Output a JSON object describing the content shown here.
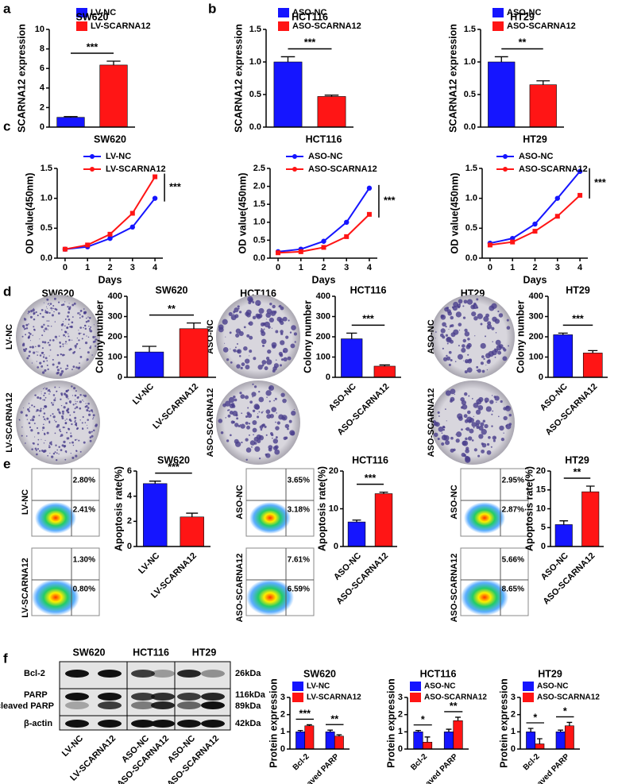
{
  "figure": {
    "panels": [
      "a",
      "b",
      "c",
      "d",
      "e",
      "f"
    ],
    "colony": [
      {
        "title": "SW620",
        "labels": [
          "LV-NC",
          "LV-SCARNA12"
        ]
      },
      {
        "title": "HCT116",
        "labels": [
          "ASO-NC",
          "ASO-SCARNA12"
        ]
      },
      {
        "title": "HT29",
        "labels": [
          "ASO-NC",
          "ASO-SCARNA12"
        ]
      }
    ],
    "flow": [
      {
        "labels": [
          "LV-NC",
          "LV-SCARNA12"
        ],
        "upper": [
          "2.80%",
          "1.30%"
        ],
        "lower": [
          "2.41%",
          "0.80%"
        ]
      },
      {
        "labels": [
          "ASO-NC",
          "ASO-SCARNA12"
        ],
        "upper": [
          "3.65%",
          "7.61%"
        ],
        "lower": [
          "3.18%",
          "6.59%"
        ]
      },
      {
        "labels": [
          "ASO-NC",
          "ASO-SCARNA12"
        ],
        "upper": [
          "2.95%",
          "5.66%"
        ],
        "lower": [
          "2.87%",
          "8.65%"
        ]
      }
    ],
    "western": {
      "cell_lines": [
        "SW620",
        "HCT116",
        "HT29"
      ],
      "proteins": [
        "Bcl-2",
        "PARP",
        "cleaved PARP",
        "β-actin"
      ],
      "sizes": [
        "26kDa",
        "116kDa",
        "89kDa",
        "42kDa"
      ],
      "lanes": [
        "LV-NC",
        "LV-SCARNA12",
        "ASO-NC",
        "ASO-SCARNA12",
        "ASO-NC",
        "ASO-SCARNA12"
      ]
    }
  },
  "chart_data": [
    {
      "type": "bar",
      "title": "SW620",
      "ylabel": "SCARNA12 expression",
      "categories": [
        "LV-NC",
        "LV-SCARNA12"
      ],
      "values": [
        1.0,
        6.35
      ],
      "errors": [
        0.08,
        0.4
      ],
      "colors": [
        "#1515ff",
        "#ff1515"
      ],
      "ylim": [
        0,
        10
      ],
      "yticks": [
        0,
        2,
        4,
        6,
        8,
        10
      ],
      "legend": "top",
      "significance": "***"
    },
    {
      "type": "bar",
      "title": "HCT116",
      "ylabel": "SCARNA12 expression",
      "categories": [
        "ASO-NC",
        "ASO-SCARNA12"
      ],
      "values": [
        1.0,
        0.47
      ],
      "errors": [
        0.08,
        0.02
      ],
      "colors": [
        "#1515ff",
        "#ff1515"
      ],
      "ylim": [
        0,
        1.5
      ],
      "yticks": [
        {
          "value": 0,
          "label": "0.0"
        },
        0.5,
        {
          "value": 1,
          "label": "1.0"
        },
        1.5
      ],
      "legend": "top",
      "significance": "***"
    },
    {
      "type": "bar",
      "title": "HT29",
      "ylabel": "SCARNA12 expression",
      "categories": [
        "ASO-NC",
        "ASO-SCARNA12"
      ],
      "values": [
        1.0,
        0.65
      ],
      "errors": [
        0.08,
        0.06
      ],
      "colors": [
        "#1515ff",
        "#ff1515"
      ],
      "ylim": [
        0,
        1.5
      ],
      "yticks": [
        {
          "value": 0,
          "label": "0.0"
        },
        0.5,
        {
          "value": 1,
          "label": "1.0"
        },
        1.5
      ],
      "legend": "top",
      "significance": "**"
    },
    {
      "type": "line",
      "title": "SW620",
      "ylabel": "OD value(450nm)",
      "xlabel": "Days",
      "x": [
        0,
        1,
        2,
        3,
        4
      ],
      "xlim": [
        -0.35,
        4.35
      ],
      "xticks": [
        0,
        1,
        2,
        3,
        4
      ],
      "ylim": [
        0,
        1.5
      ],
      "yticks": [
        {
          "value": 0,
          "label": "0.0"
        },
        0.5,
        {
          "value": 1,
          "label": "1.0"
        },
        1.5
      ],
      "series": [
        {
          "name": "LV-NC",
          "color": "#1515ff",
          "values": [
            0.15,
            0.19,
            0.33,
            0.52,
            1.0
          ]
        },
        {
          "name": "LV-SCARNA12",
          "color": "#ff1515",
          "values": [
            0.15,
            0.22,
            0.4,
            0.75,
            1.36
          ]
        }
      ],
      "significance": "***"
    },
    {
      "type": "line",
      "title": "HCT116",
      "ylabel": "OD value(450nm)",
      "xlabel": "Days",
      "x": [
        0,
        1,
        2,
        3,
        4
      ],
      "xlim": [
        -0.35,
        4.35
      ],
      "xticks": [
        0,
        1,
        2,
        3,
        4
      ],
      "ylim": [
        0,
        2.5
      ],
      "yticks": [
        {
          "value": 0,
          "label": "0.0"
        },
        0.5,
        {
          "value": 1,
          "label": "1.0"
        },
        1.5,
        {
          "value": 2,
          "label": "2.0"
        },
        2.5
      ],
      "series": [
        {
          "name": "ASO-NC",
          "color": "#1515ff",
          "values": [
            0.18,
            0.25,
            0.47,
            1.0,
            1.95
          ]
        },
        {
          "name": "ASO-SCARNA12",
          "color": "#ff1515",
          "values": [
            0.15,
            0.18,
            0.3,
            0.6,
            1.22
          ]
        }
      ],
      "significance": "***"
    },
    {
      "type": "line",
      "title": "HT29",
      "ylabel": "OD value(450nm)",
      "xlabel": "Days",
      "x": [
        0,
        1,
        2,
        3,
        4
      ],
      "xlim": [
        -0.35,
        4.35
      ],
      "xticks": [
        0,
        1,
        2,
        3,
        4
      ],
      "ylim": [
        0,
        1.5
      ],
      "yticks": [
        {
          "value": 0,
          "label": "0.0"
        },
        0.5,
        {
          "value": 1,
          "label": "1.0"
        },
        1.5
      ],
      "series": [
        {
          "name": "ASO-NC",
          "color": "#1515ff",
          "values": [
            0.25,
            0.33,
            0.57,
            1.0,
            1.45
          ]
        },
        {
          "name": "ASO-SCARNA12",
          "color": "#ff1515",
          "values": [
            0.22,
            0.27,
            0.45,
            0.7,
            1.05
          ]
        }
      ],
      "significance": "***"
    },
    {
      "type": "bar",
      "title": "SW620",
      "ylabel": "Colony number",
      "categories": [
        "LV-NC",
        "LV-SCARNA12"
      ],
      "values": [
        125,
        240
      ],
      "errors": [
        28,
        28
      ],
      "colors": [
        "#1515ff",
        "#ff1515"
      ],
      "ylim": [
        0,
        400
      ],
      "yticks": [
        0,
        100,
        200,
        300,
        400
      ],
      "significance": "**"
    },
    {
      "type": "bar",
      "title": "HCT116",
      "ylabel": "Colony number",
      "categories": [
        "ASO-NC",
        "ASO-SCARNA12"
      ],
      "values": [
        190,
        55
      ],
      "errors": [
        28,
        6
      ],
      "colors": [
        "#1515ff",
        "#ff1515"
      ],
      "ylim": [
        0,
        400
      ],
      "yticks": [
        0,
        100,
        200,
        300,
        400
      ],
      "significance": "***"
    },
    {
      "type": "bar",
      "title": "HT29",
      "ylabel": "Colony number",
      "categories": [
        "ASO-NC",
        "ASO-SCARNA12"
      ],
      "values": [
        210,
        120
      ],
      "errors": [
        8,
        12
      ],
      "colors": [
        "#1515ff",
        "#ff1515"
      ],
      "ylim": [
        0,
        400
      ],
      "yticks": [
        0,
        100,
        200,
        300,
        400
      ],
      "significance": "***"
    },
    {
      "type": "bar",
      "title": "SW620",
      "ylabel": "Apoptosis rate(%)",
      "categories": [
        "LV-NC",
        "LV-SCARNA12"
      ],
      "values": [
        5.0,
        2.35
      ],
      "errors": [
        0.2,
        0.3
      ],
      "colors": [
        "#1515ff",
        "#ff1515"
      ],
      "ylim": [
        0,
        6
      ],
      "yticks": [
        0,
        2,
        4,
        6
      ],
      "significance": "***"
    },
    {
      "type": "bar",
      "title": "HCT116",
      "ylabel": "Apoptosis rate(%)",
      "categories": [
        "ASO-NC",
        "ASO-SCARNA12"
      ],
      "values": [
        6.5,
        14.0
      ],
      "errors": [
        0.5,
        0.4
      ],
      "colors": [
        "#1515ff",
        "#ff1515"
      ],
      "ylim": [
        0,
        20
      ],
      "yticks": [
        0,
        10,
        20
      ],
      "significance": "***"
    },
    {
      "type": "bar",
      "title": "HT29",
      "ylabel": "Apoptosis rate(%)",
      "categories": [
        "ASO-NC",
        "ASO-SCARNA12"
      ],
      "values": [
        5.8,
        14.5
      ],
      "errors": [
        1.0,
        1.5
      ],
      "colors": [
        "#1515ff",
        "#ff1515"
      ],
      "ylim": [
        0,
        20
      ],
      "yticks": [
        0,
        5,
        10,
        15,
        20
      ],
      "significance": "**"
    },
    {
      "type": "grouped_bar",
      "title": "SW620",
      "ylabel": "Protein expression",
      "categories": [
        "Bcl-2",
        "cleaved PARP"
      ],
      "series": [
        {
          "name": "LV-NC",
          "color": "#1515ff",
          "values": [
            1.0,
            1.0
          ],
          "errors": [
            0.08,
            0.1
          ]
        },
        {
          "name": "LV-SCARNA12",
          "color": "#ff1515",
          "values": [
            1.35,
            0.75
          ],
          "errors": [
            0.06,
            0.08
          ]
        }
      ],
      "ylim": [
        0,
        3
      ],
      "yticks": [
        0,
        1,
        2,
        3
      ],
      "significance": [
        "***",
        "**"
      ]
    },
    {
      "type": "grouped_bar",
      "title": "HCT116",
      "ylabel": "Protein expression",
      "categories": [
        "Bcl-2",
        "cleaved PARP"
      ],
      "series": [
        {
          "name": "ASO-NC",
          "color": "#1515ff",
          "values": [
            1.0,
            1.0
          ],
          "errors": [
            0.08,
            0.15
          ]
        },
        {
          "name": "ASO-SCARNA12",
          "color": "#ff1515",
          "values": [
            0.4,
            1.65
          ],
          "errors": [
            0.3,
            0.2
          ]
        }
      ],
      "ylim": [
        0,
        3
      ],
      "yticks": [
        0,
        1,
        2,
        3
      ],
      "significance": [
        "*",
        "**"
      ]
    },
    {
      "type": "grouped_bar",
      "title": "HT29",
      "ylabel": "Protein expression",
      "categories": [
        "Bcl-2",
        "cleaved PARP"
      ],
      "series": [
        {
          "name": "ASO-NC",
          "color": "#1515ff",
          "values": [
            1.0,
            1.0
          ],
          "errors": [
            0.2,
            0.1
          ]
        },
        {
          "name": "ASO-SCARNA12",
          "color": "#ff1515",
          "values": [
            0.3,
            1.35
          ],
          "errors": [
            0.3,
            0.2
          ]
        }
      ],
      "ylim": [
        0,
        3
      ],
      "yticks": [
        0,
        1,
        2,
        3
      ],
      "significance": [
        "*",
        "*"
      ]
    }
  ]
}
